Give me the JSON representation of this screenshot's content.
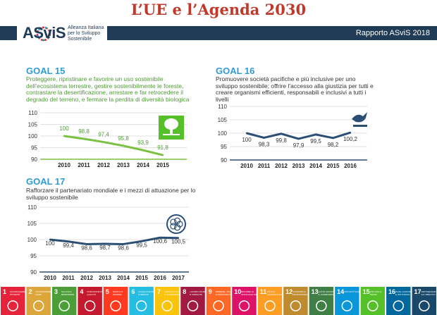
{
  "slide": {
    "title": "L’UE e l’Agenda 2030",
    "report": "Rapporto ASviS 2018",
    "logo_name": "ASviS",
    "logo_tagline": "Alleanza Italiana per lo Sviluppo Sostenibile"
  },
  "colors": {
    "title": "#c0392b",
    "band": "#1f3b55",
    "goal_heading": "#2e9bd6",
    "goal15_line": "#7cc242",
    "goal15_text": "#4e9a34",
    "line_blue": "#2b4e73"
  },
  "goals": [
    {
      "title": "GOAL 15",
      "description": "Proteggere, ripristinare e favorire un uso sostenibile dell’ecosistema terrestre, gestire sostenibilmente le foreste, contrastare la desertificazione, arrestare e far retrocedere il degrado del terreno, e fermare la perdita di diversità biologica",
      "icon": "tree-icon"
    },
    {
      "title": "GOAL 16",
      "description": "Promuovere società pacifiche e più inclusive per uno sviluppo sostenibile; offrire l’accesso alla giustizia per tutti e creare organismi efficienti, responsabili e inclusivi a tutti i livelli",
      "icon": "dove-icon"
    },
    {
      "title": "GOAL 17",
      "description": "Rafforzare il partenariato mondiale e i mezzi di attuazione per lo sviluppo sostenibile",
      "icon": "partnership-icon"
    }
  ],
  "chart_data": [
    {
      "type": "line",
      "x": [
        "2010",
        "2011",
        "2012",
        "2013",
        "2014",
        "2015"
      ],
      "series": [
        {
          "values": [
            100,
            98.8,
            97.4,
            95.8,
            93.9,
            91.8
          ]
        }
      ],
      "data_labels": [
        "100",
        "98,8",
        "97,4",
        "95,8",
        "93,9",
        "91,8"
      ],
      "yticks": [
        "110",
        "105",
        "100",
        "95",
        "90"
      ],
      "ylim": [
        90,
        110
      ],
      "grid": true,
      "color": "#7cc242"
    },
    {
      "type": "line",
      "x": [
        "2010",
        "2011",
        "2012",
        "2013",
        "2014",
        "2015",
        "2016"
      ],
      "series": [
        {
          "values": [
            100,
            98.3,
            99.8,
            97.9,
            99.5,
            98.2,
            100.2
          ]
        }
      ],
      "data_labels": [
        "100",
        "98,3",
        "99,8",
        "97,9",
        "99,5",
        "98,2",
        "100,2"
      ],
      "yticks": [
        "110",
        "105",
        "100",
        "95",
        "90"
      ],
      "ylim": [
        90,
        110
      ],
      "grid": true,
      "color": "#2b4e73"
    },
    {
      "type": "line",
      "x": [
        "2010",
        "2011",
        "2012",
        "2013",
        "2014",
        "2015",
        "2016",
        "2017"
      ],
      "series": [
        {
          "values": [
            100,
            99.4,
            98.6,
            98.7,
            98.6,
            99.5,
            100.6,
            100.5
          ]
        }
      ],
      "data_labels": [
        "100",
        "99,4",
        "98,6",
        "98,7",
        "98,6",
        "99,5",
        "100,6",
        "100,5"
      ],
      "yticks": [
        "110",
        "105",
        "100",
        "95",
        "90"
      ],
      "ylim": [
        90,
        110
      ],
      "grid": true,
      "color": "#2b4e73"
    }
  ],
  "sdg_tiles": [
    {
      "number": "1",
      "label": "SCONFIGGERE LA POVERTÀ",
      "color": "#e5243b"
    },
    {
      "number": "2",
      "label": "SCONFIGGERE LA FAME",
      "color": "#dda63a"
    },
    {
      "number": "3",
      "label": "SALUTE E BENESSERE",
      "color": "#4c9f38"
    },
    {
      "number": "4",
      "label": "ISTRUZIONE DI QUALITÀ",
      "color": "#c5192d"
    },
    {
      "number": "5",
      "label": "PARITÀ DI GENERE",
      "color": "#ff3a21"
    },
    {
      "number": "6",
      "label": "ACQUA PULITA E SERVIZI IGIENICO-SANITARI",
      "color": "#26bde2"
    },
    {
      "number": "7",
      "label": "ENERGIA PULITA E ACCESSIBILE",
      "color": "#fcc30b"
    },
    {
      "number": "8",
      "label": "LAVORO DIGNITOSO E CRESCITA ECONOMICA",
      "color": "#a21942"
    },
    {
      "number": "9",
      "label": "IMPRESE, INNOVAZIONE E INFRASTRUTTURE",
      "color": "#fd6925"
    },
    {
      "number": "10",
      "label": "RIDURRE LE DISUGUAGLIANZE",
      "color": "#dd1367"
    },
    {
      "number": "11",
      "label": "CITTÀ E COMUNITÀ SOSTENIBILI",
      "color": "#fd9d24"
    },
    {
      "number": "12",
      "label": "CONSUMO E PRODUZIONE RESPONSABILI",
      "color": "#bf8b2e"
    },
    {
      "number": "13",
      "label": "LOTTA CONTRO IL CAMBIAMENTO CLIMATICO",
      "color": "#3f7e44"
    },
    {
      "number": "14",
      "label": "VITA SOTT'ACQUA",
      "color": "#0a97d9"
    },
    {
      "number": "15",
      "label": "VITA SULLA TERRA",
      "color": "#56c02b"
    },
    {
      "number": "16",
      "label": "PACE, GIUSTIZIA E ISTITUZIONI SOLIDE",
      "color": "#00689d"
    },
    {
      "number": "17",
      "label": "PARTNERSHIP PER GLI OBIETTIVI",
      "color": "#19486a"
    }
  ]
}
